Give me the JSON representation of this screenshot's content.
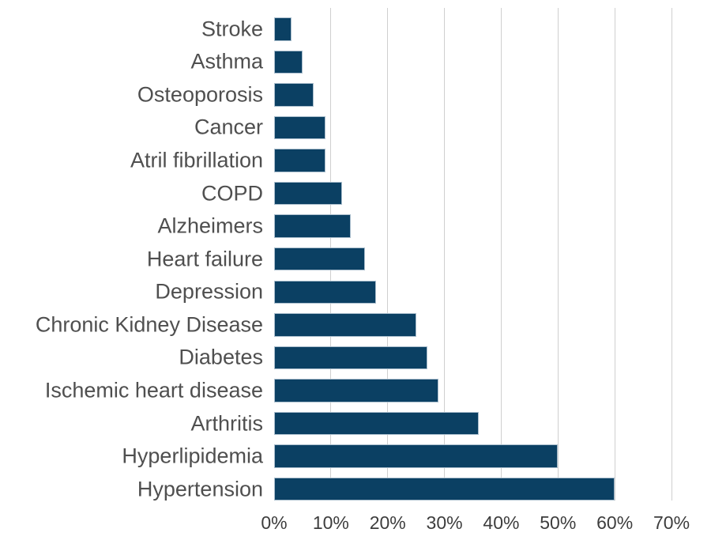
{
  "chart_data": {
    "type": "bar",
    "orientation": "horizontal",
    "title": "",
    "xlabel": "",
    "ylabel": "",
    "categories": [
      "Stroke",
      "Asthma",
      "Osteoporosis",
      "Cancer",
      "Atril fibrillation",
      "COPD",
      "Alzheimers",
      "Heart failure",
      "Depression",
      "Chronic Kidney Disease",
      "Diabetes",
      "Ischemic heart disease",
      "Arthritis",
      "Hyperlipidemia",
      "Hypertension"
    ],
    "values": [
      3,
      5,
      7,
      9,
      9,
      12,
      13.5,
      16,
      18,
      25,
      27,
      29,
      36,
      50,
      60
    ],
    "unit": "%",
    "xlim": [
      0,
      70
    ],
    "x_tick_step": 10,
    "x_ticks": [
      "0%",
      "10%",
      "20%",
      "30%",
      "40%",
      "50%",
      "60%",
      "70%"
    ],
    "grid": "vertical",
    "legend": "none",
    "colors": {
      "bar_fill": "#0b4063",
      "bar_edge": "#aabecd",
      "gridline": "#cfcfcf",
      "category_label": "#4f4f4f",
      "tick_label": "#3d3d3d",
      "background": "#ffffff"
    }
  }
}
